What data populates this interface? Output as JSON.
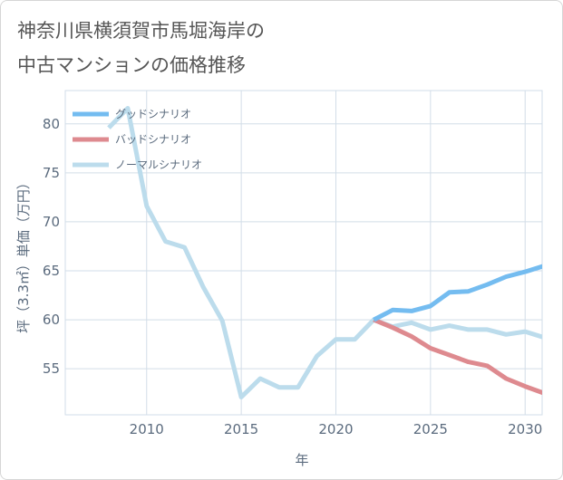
{
  "title_line1": "神奈川県横須賀市馬堀海岸の",
  "title_line2": "中古マンションの価格推移",
  "chart_data": {
    "type": "line",
    "title": "神奈川県横須賀市馬堀海岸の中古マンションの価格推移",
    "xlabel": "年",
    "ylabel": "坪（3.3㎡）単価（万円）",
    "xlim": [
      2005.7,
      2030.9
    ],
    "ylim": [
      50.3,
      83.4
    ],
    "xticks": [
      2010,
      2015,
      2020,
      2025,
      2030
    ],
    "yticks": [
      55,
      60,
      65,
      70,
      75,
      80
    ],
    "grid": true,
    "legend_position": "top-left",
    "series": [
      {
        "name": "グッドシナリオ",
        "color": "#74bcf0",
        "x": [
          2022,
          2023,
          2024,
          2025,
          2026,
          2027,
          2028,
          2029,
          2030,
          2031
        ],
        "y": [
          60.0,
          61.0,
          60.9,
          61.4,
          62.8,
          62.9,
          63.6,
          64.4,
          64.9,
          65.5
        ]
      },
      {
        "name": "バッドシナリオ",
        "color": "#de8a8f",
        "x": [
          2022,
          2023,
          2024,
          2025,
          2026,
          2027,
          2028,
          2029,
          2030,
          2031
        ],
        "y": [
          60.0,
          59.2,
          58.3,
          57.1,
          56.4,
          55.7,
          55.3,
          54.0,
          53.2,
          52.5
        ]
      },
      {
        "name": "ノーマルシナリオ",
        "color": "#bcdcec",
        "x": [
          2008,
          2009,
          2010,
          2011,
          2012,
          2013,
          2014,
          2015,
          2016,
          2017,
          2018,
          2019,
          2020,
          2021,
          2022,
          2023,
          2024,
          2025,
          2026,
          2027,
          2028,
          2029,
          2030,
          2031
        ],
        "y": [
          79.6,
          81.6,
          71.6,
          68.0,
          67.4,
          63.3,
          59.9,
          52.1,
          54.0,
          53.1,
          53.1,
          56.3,
          58.0,
          58.0,
          60.0,
          59.3,
          59.7,
          59.0,
          59.4,
          59.0,
          59.0,
          58.5,
          58.8,
          58.2
        ]
      }
    ]
  }
}
